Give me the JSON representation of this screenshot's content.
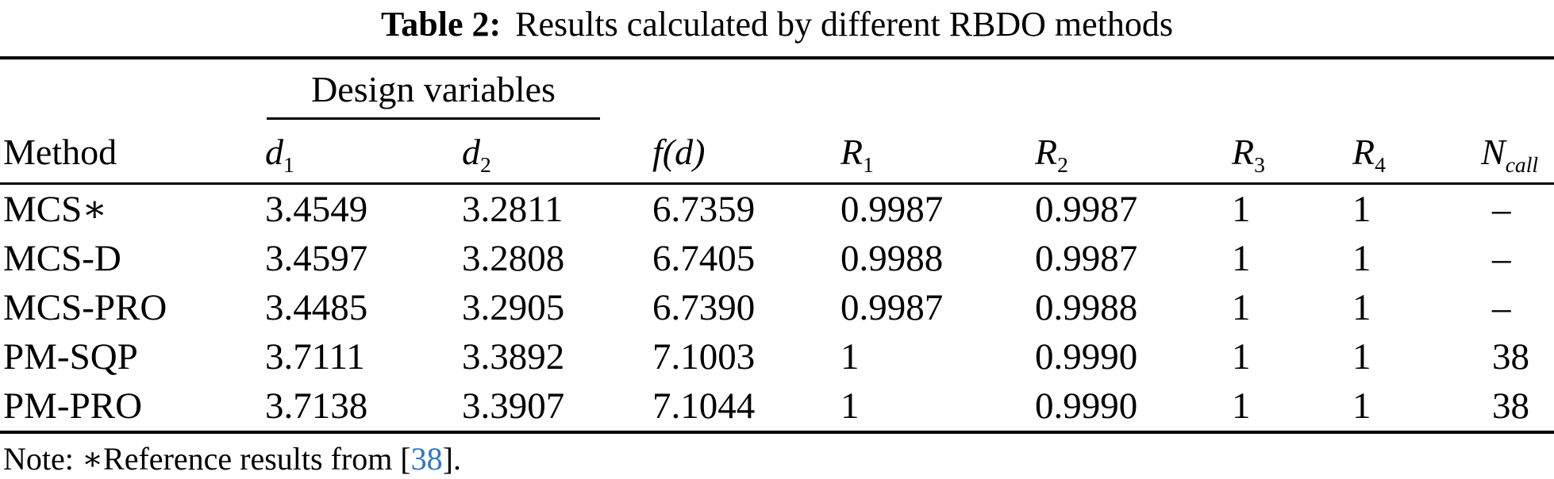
{
  "title": {
    "bold": "Table 2:",
    "rest": "Results calculated by different RBDO methods"
  },
  "table": {
    "group_header": "Design variables",
    "columns": {
      "method": {
        "label": "Method"
      },
      "d1": {
        "base": "d",
        "sub": "1"
      },
      "d2": {
        "base": "d",
        "sub": "2"
      },
      "fd": {
        "base": "f(d)"
      },
      "r1": {
        "base": "R",
        "sub": "1"
      },
      "r2": {
        "base": "R",
        "sub": "2"
      },
      "r3": {
        "base": "R",
        "sub": "3"
      },
      "r4": {
        "base": "R",
        "sub": "4"
      },
      "ncall": {
        "base": "N",
        "sub": "call"
      }
    },
    "rows": [
      {
        "cells": [
          "MCS∗",
          "3.4549",
          "3.2811",
          "6.7359",
          "0.9987",
          "0.9987",
          "1",
          "1",
          "–"
        ]
      },
      {
        "cells": [
          "MCS-D",
          "3.4597",
          "3.2808",
          "6.7405",
          "0.9988",
          "0.9987",
          "1",
          "1",
          "–"
        ]
      },
      {
        "cells": [
          "MCS-PRO",
          "3.4485",
          "3.2905",
          "6.7390",
          "0.9987",
          "0.9988",
          "1",
          "1",
          "–"
        ]
      },
      {
        "cells": [
          "PM-SQP",
          "3.7111",
          "3.3892",
          "7.1003",
          "1",
          "0.9990",
          "1",
          "1",
          "38"
        ]
      },
      {
        "cells": [
          "PM-PRO",
          "3.7138",
          "3.3907",
          "7.1044",
          "1",
          "0.9990",
          "1",
          "1",
          "38"
        ]
      }
    ]
  },
  "note": {
    "prefix": "Note: ∗Reference results from [",
    "citation": "38",
    "suffix": "]."
  },
  "colors": {
    "text": "#000000",
    "citation_blue": "#2e75c3",
    "background": "#ffffff"
  }
}
